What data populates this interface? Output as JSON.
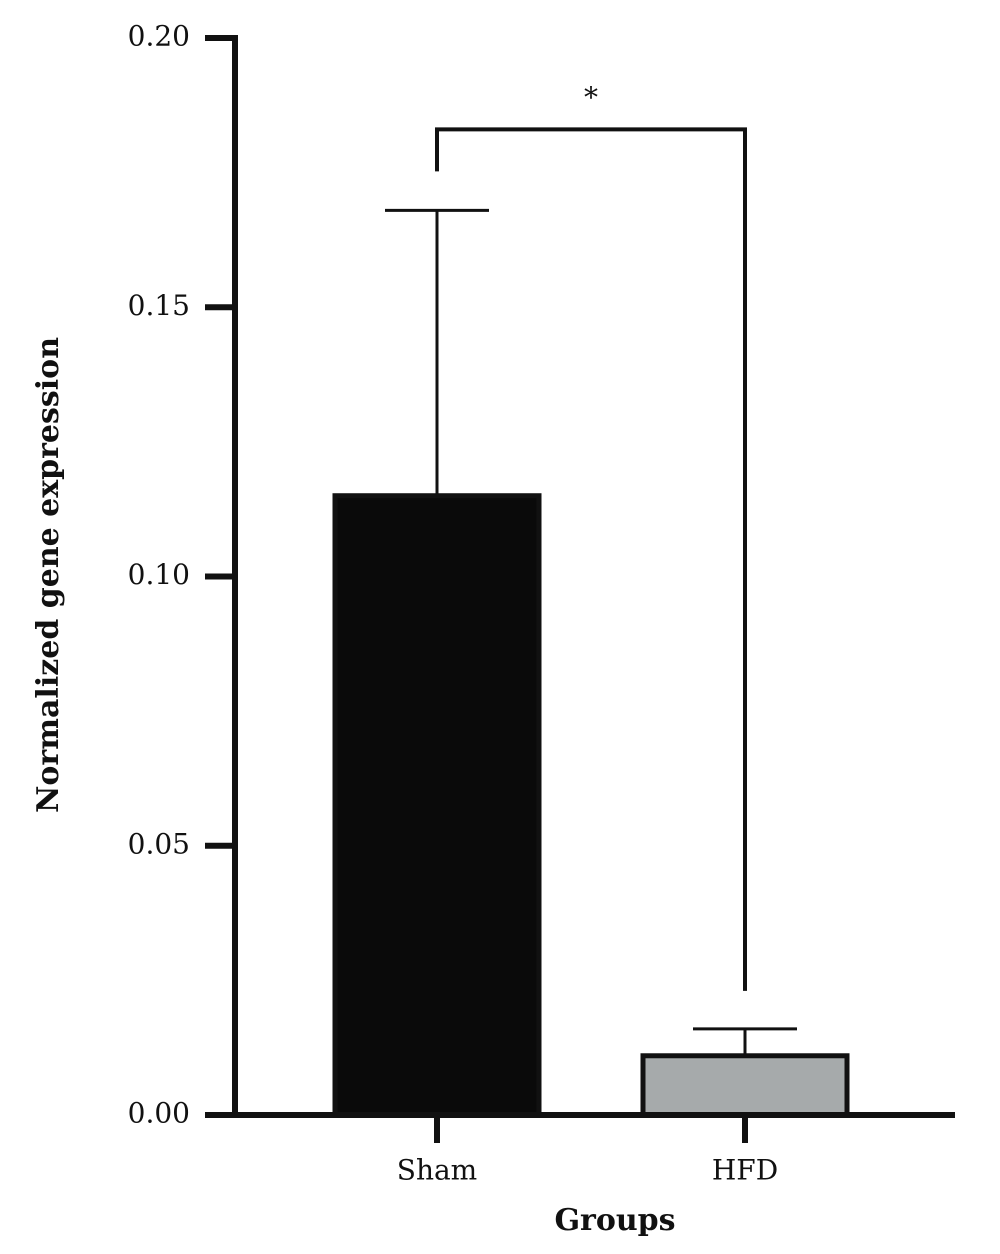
{
  "chart_data": {
    "type": "bar",
    "x_label": "Groups",
    "y_label": "Normalized gene expression",
    "categories": [
      "Sham",
      "HFD"
    ],
    "values": [
      0.115,
      0.011
    ],
    "errors": [
      0.053,
      0.005
    ],
    "colors": [
      "#0a0a0a",
      "#a6aaab"
    ],
    "ylim": [
      0,
      0.2
    ],
    "yticks": [
      {
        "value": 0,
        "label": "0.00"
      },
      {
        "value": 0.05,
        "label": "0.05"
      },
      {
        "value": 0.1,
        "label": "0.10"
      },
      {
        "value": 0.15,
        "label": "0.15"
      },
      {
        "value": 0.2,
        "label": "0.20"
      }
    ],
    "annotations": [
      {
        "text": "*"
      }
    ]
  }
}
